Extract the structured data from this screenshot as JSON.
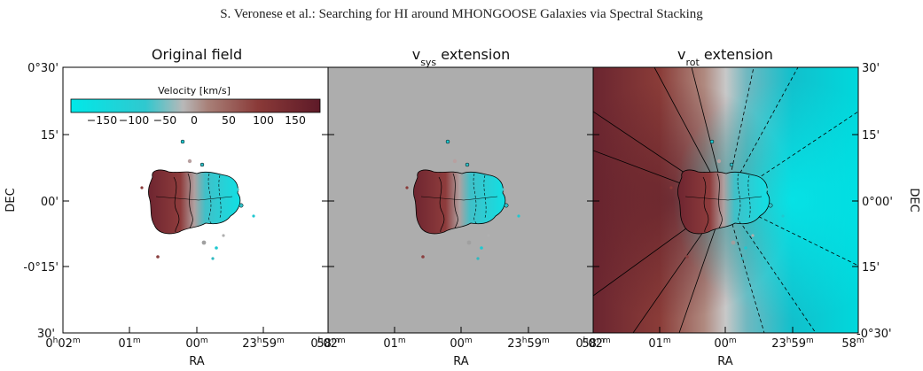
{
  "header": {
    "running_title": "S. Veronese et al.: Searching for HI around MHONGOOSE Galaxies via Spectral Stacking"
  },
  "figure": {
    "panels": [
      {
        "title_main": "Original field",
        "title_sub": "",
        "title_suffix": ""
      },
      {
        "title_main": "v",
        "title_sub": "sys",
        "title_suffix": " extension"
      },
      {
        "title_main": "v",
        "title_sub": "rot",
        "title_suffix": " extension"
      }
    ],
    "colorbar": {
      "label": "Velocity [km/s]",
      "ticks": [
        "−150",
        "−100",
        "−50",
        "0",
        "50",
        "100",
        "150"
      ],
      "colors": {
        "negative": "#00e5e5",
        "zero": "#b4b4b4",
        "positive": "#6a1f2a"
      }
    },
    "y_axis": {
      "label": "DEC",
      "left_ticks": [
        "0°30'",
        "15'",
        "00'",
        "-0°15'",
        "30'"
      ],
      "right_label": "DEC",
      "right_ticks": [
        "30'",
        "15'",
        "0°00'",
        "15'",
        "-0°30'"
      ]
    },
    "x_axis": {
      "label": "RA",
      "ticks": [
        {
          "main": "0",
          "sup": "h",
          "main2": "02",
          "sup2": "m"
        },
        {
          "main": "01",
          "sup": "m",
          "main2": "",
          "sup2": ""
        },
        {
          "main": "00",
          "sup": "m",
          "main2": "",
          "sup2": ""
        },
        {
          "main": "23",
          "sup": "h",
          "main2": "59",
          "sup2": "m"
        },
        {
          "main": "58",
          "sup": "m",
          "main2": "",
          "sup2": ""
        }
      ],
      "labels": [
        "RA",
        "RA",
        "RA"
      ]
    },
    "background_gray": "#adadad"
  }
}
